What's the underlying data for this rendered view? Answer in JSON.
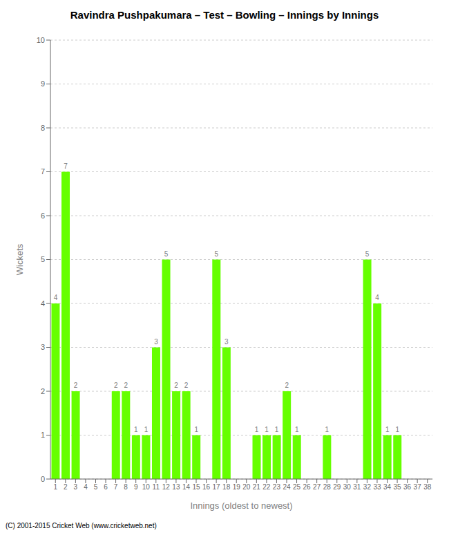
{
  "chart_data": {
    "type": "bar",
    "title": "Ravindra Pushpakumara – Test – Bowling – Innings by Innings",
    "xlabel": "Innings (oldest to newest)",
    "ylabel": "Wickets",
    "categories": [
      "1",
      "2",
      "3",
      "4",
      "5",
      "6",
      "7",
      "8",
      "9",
      "10",
      "11",
      "12",
      "13",
      "14",
      "15",
      "16",
      "17",
      "18",
      "19",
      "20",
      "21",
      "22",
      "23",
      "24",
      "25",
      "26",
      "27",
      "28",
      "29",
      "30",
      "31",
      "32",
      "33",
      "34",
      "35",
      "36",
      "37",
      "38"
    ],
    "values": [
      4,
      7,
      2,
      0,
      0,
      0,
      2,
      2,
      1,
      1,
      3,
      5,
      2,
      2,
      1,
      0,
      5,
      3,
      0,
      0,
      1,
      1,
      1,
      2,
      1,
      0,
      0,
      1,
      0,
      0,
      0,
      5,
      4,
      1,
      1,
      0,
      0,
      0
    ],
    "color": "#66ff00",
    "ylim": [
      0,
      10
    ],
    "yticks": [
      0,
      1,
      2,
      3,
      4,
      5,
      6,
      7,
      8,
      9,
      10
    ],
    "grid": true,
    "data_labels": true,
    "annotation": "(C) 2001-2015 Cricket Web (www.cricketweb.net)"
  }
}
